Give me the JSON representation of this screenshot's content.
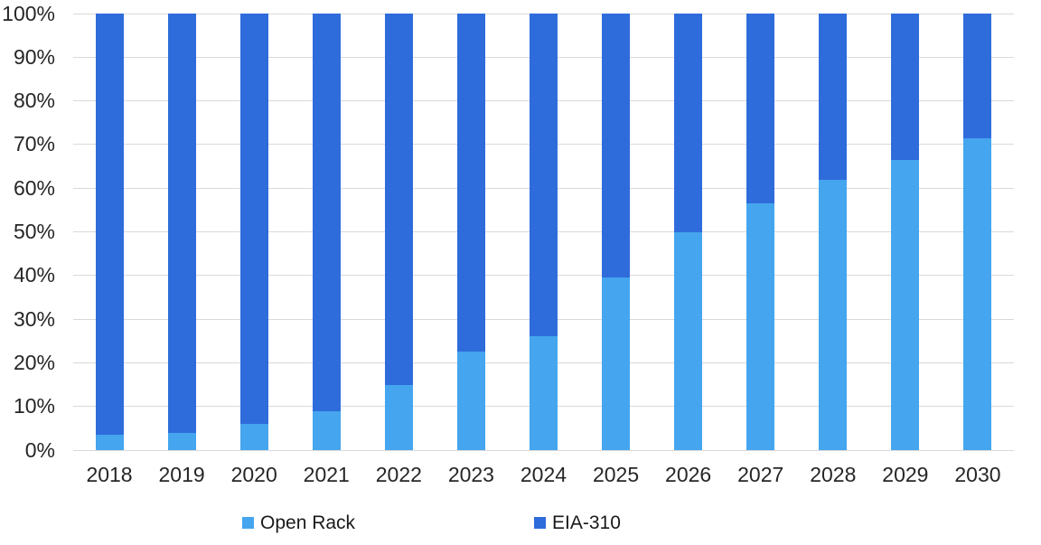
{
  "chart_data": {
    "type": "bar",
    "variant": "stacked-100-percent",
    "title": "",
    "xlabel": "",
    "ylabel": "",
    "categories": [
      "2018",
      "2019",
      "2020",
      "2021",
      "2022",
      "2023",
      "2024",
      "2025",
      "2026",
      "2027",
      "2028",
      "2029",
      "2030"
    ],
    "series": [
      {
        "name": "Open Rack",
        "color": "#45A5EE",
        "values": [
          3.5,
          4,
          6,
          9,
          15,
          22.5,
          26,
          39.5,
          50,
          56.5,
          62,
          66.5,
          71.5
        ]
      },
      {
        "name": "EIA-310",
        "color": "#2F6CDB",
        "values": [
          96.5,
          96,
          94,
          91,
          85,
          77.5,
          74,
          60.5,
          50,
          43.5,
          38,
          33.5,
          28.5
        ]
      }
    ],
    "ylim": [
      0,
      100
    ],
    "yticks": [
      "0%",
      "10%",
      "20%",
      "30%",
      "40%",
      "50%",
      "60%",
      "70%",
      "80%",
      "90%",
      "100%"
    ],
    "grid": true,
    "gridline_color": "#d9d9d9",
    "legend_position": "bottom",
    "legend_items": [
      "Open Rack",
      "EIA-310"
    ]
  }
}
